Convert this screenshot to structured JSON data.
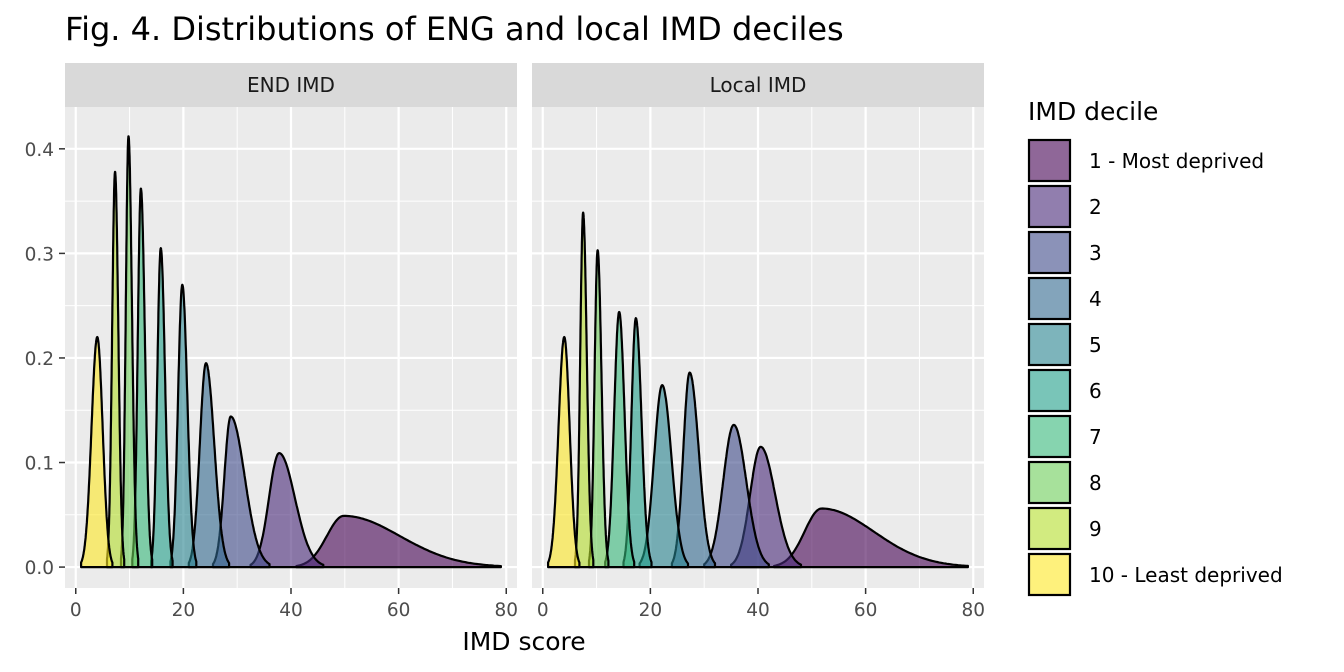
{
  "chart_data": {
    "type": "area",
    "subtype": "density",
    "title": "Fig. 4. Distributions of ENG and local IMD deciles",
    "xlabel": "IMD score",
    "ylabel": "",
    "xlim": [
      -2,
      82
    ],
    "ylim": [
      -0.02,
      0.44
    ],
    "x_ticks": [
      0,
      20,
      40,
      60,
      80
    ],
    "y_ticks": [
      0.0,
      0.1,
      0.2,
      0.3,
      0.4
    ],
    "y_tick_labels": [
      "0.0",
      "0.1",
      "0.2",
      "0.3",
      "0.4"
    ],
    "grid": true,
    "legend": {
      "title": "IMD decile",
      "position": "right",
      "entries": [
        "1 - Most deprived",
        "2",
        "3",
        "4",
        "5",
        "6",
        "7",
        "8",
        "9",
        "10 - Least deprived"
      ]
    },
    "colors": [
      "#440154",
      "#482878",
      "#3E4989",
      "#31688E",
      "#26828E",
      "#1F9E89",
      "#35B779",
      "#6DCD59",
      "#B4DE2C",
      "#FDE725"
    ],
    "fill_alpha": 0.6,
    "panels": [
      {
        "name": "END IMD",
        "series": [
          {
            "name": "1 - Most deprived",
            "peak_x": 49.8,
            "peak_y": 0.049,
            "range": [
              41,
              79
            ]
          },
          {
            "name": "2",
            "peak_x": 37.8,
            "peak_y": 0.109,
            "range": [
              32.5,
              46
            ]
          },
          {
            "name": "3",
            "peak_x": 28.8,
            "peak_y": 0.144,
            "range": [
              25.5,
              36
            ]
          },
          {
            "name": "4",
            "peak_x": 24.2,
            "peak_y": 0.195,
            "range": [
              21,
              28.5
            ]
          },
          {
            "name": "5",
            "peak_x": 19.8,
            "peak_y": 0.27,
            "range": [
              17.6,
              22.4
            ]
          },
          {
            "name": "6",
            "peak_x": 15.8,
            "peak_y": 0.305,
            "range": [
              14,
              18
            ]
          },
          {
            "name": "7",
            "peak_x": 12.1,
            "peak_y": 0.362,
            "range": [
              10.5,
              14.2
            ]
          },
          {
            "name": "8",
            "peak_x": 9.8,
            "peak_y": 0.412,
            "range": [
              8.4,
              11.6
            ]
          },
          {
            "name": "9",
            "peak_x": 7.3,
            "peak_y": 0.378,
            "range": [
              5.8,
              9
            ]
          },
          {
            "name": "10 - Least deprived",
            "peak_x": 4.0,
            "peak_y": 0.22,
            "range": [
              1,
              6.8
            ]
          }
        ]
      },
      {
        "name": "Local IMD",
        "series": [
          {
            "name": "1 - Most deprived",
            "peak_x": 51.8,
            "peak_y": 0.056,
            "range": [
              43,
              79
            ]
          },
          {
            "name": "2",
            "peak_x": 40.5,
            "peak_y": 0.115,
            "range": [
              35,
              48
            ]
          },
          {
            "name": "3",
            "peak_x": 35.5,
            "peak_y": 0.136,
            "range": [
              30,
              42
            ]
          },
          {
            "name": "4",
            "peak_x": 27.3,
            "peak_y": 0.186,
            "range": [
              24,
              32
            ]
          },
          {
            "name": "5",
            "peak_x": 22.2,
            "peak_y": 0.174,
            "range": [
              18,
              27
            ]
          },
          {
            "name": "6",
            "peak_x": 17.3,
            "peak_y": 0.238,
            "range": [
              15,
              20.2
            ]
          },
          {
            "name": "7",
            "peak_x": 14.2,
            "peak_y": 0.244,
            "range": [
              11.6,
              17
            ]
          },
          {
            "name": "8",
            "peak_x": 10.2,
            "peak_y": 0.303,
            "range": [
              8.6,
              12.2
            ]
          },
          {
            "name": "9",
            "peak_x": 7.5,
            "peak_y": 0.339,
            "range": [
              6,
              9.4
            ]
          },
          {
            "name": "10 - Least deprived",
            "peak_x": 4.0,
            "peak_y": 0.22,
            "range": [
              1,
              6.8
            ]
          }
        ]
      }
    ]
  }
}
